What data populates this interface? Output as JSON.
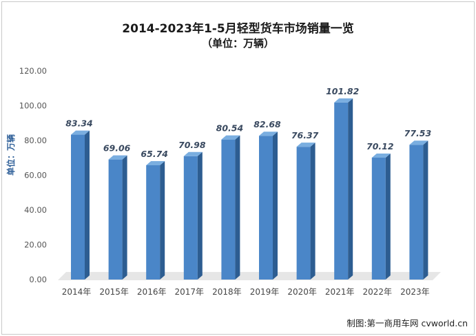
{
  "chart_data": {
    "type": "bar",
    "title": "2014-2023年1-5月轻型货车市场销量一览",
    "subtitle": "（单位：万辆）",
    "xlabel": "",
    "ylabel": "单位：万辆",
    "categories": [
      "2014年",
      "2015年",
      "2016年",
      "2017年",
      "2018年",
      "2019年",
      "2020年",
      "2021年",
      "2022年",
      "2023年"
    ],
    "values": [
      83.34,
      69.06,
      65.74,
      70.98,
      80.54,
      82.68,
      76.37,
      101.82,
      70.12,
      77.53
    ],
    "data_labels": [
      "83.34",
      "69.06",
      "65.74",
      "70.98",
      "80.54",
      "82.68",
      "76.37",
      "101.82",
      "70.12",
      "77.53"
    ],
    "yticks": [
      "0.00",
      "20.00",
      "40.00",
      "60.00",
      "80.00",
      "100.00",
      "120.00"
    ],
    "ylim": [
      0,
      120
    ],
    "grid": false,
    "legend": "none",
    "colors": {
      "bar_front": "#4a86c8",
      "bar_side": "#2d5d91",
      "bar_top": "#7aaee0",
      "floor": "#e6e6e6"
    }
  },
  "credit": "制图:第一商用车网 cvworld.cn"
}
